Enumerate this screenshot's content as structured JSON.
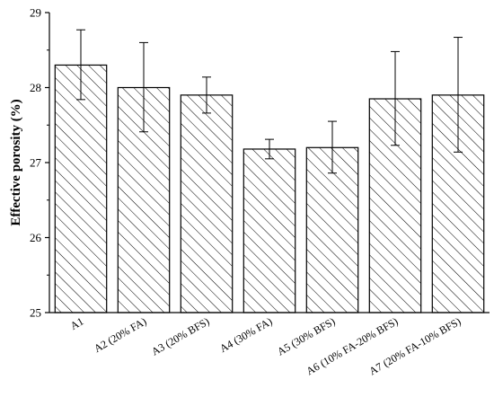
{
  "chart_data": {
    "type": "bar",
    "categories": [
      "A1",
      "A2 (20% FA)",
      "A3 (20% BFS)",
      "A4 (30% FA)",
      "A5 (30% BFS)",
      "A6 (10% FA-20% BFS)",
      "A7 (20% FA-10% BFS)"
    ],
    "values": [
      28.3,
      28.0,
      27.9,
      27.18,
      27.2,
      27.85,
      27.9
    ],
    "error_low": [
      27.84,
      27.41,
      27.66,
      27.05,
      26.86,
      27.23,
      27.14
    ],
    "error_high": [
      28.77,
      28.6,
      28.14,
      27.31,
      27.55,
      28.48,
      28.67
    ],
    "title": "",
    "xlabel": "",
    "ylabel": "Effective porosity (%)",
    "ylim": [
      25,
      29
    ],
    "yticks": [
      "25",
      "26",
      "27",
      "28",
      "29"
    ],
    "bar_fill": "hatched",
    "colors": {
      "bar_stroke": "#000000",
      "hatch": "#000000",
      "background": "#ffffff"
    },
    "grid": false,
    "legend": "none"
  }
}
